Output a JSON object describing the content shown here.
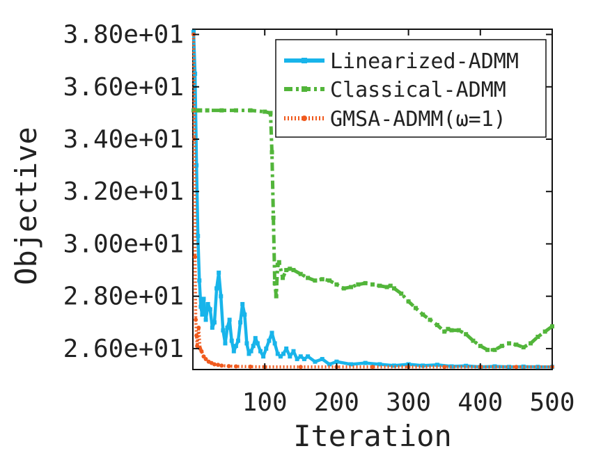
{
  "chart_data": {
    "type": "line",
    "xlabel": "Iteration",
    "ylabel": "Objective",
    "xlim": [
      0,
      500
    ],
    "ylim": [
      25.2,
      38.2
    ],
    "x_ticks": [
      100,
      200,
      300,
      400,
      500
    ],
    "x_tick_labels": [
      "100",
      "200",
      "300",
      "400",
      "500"
    ],
    "y_ticks": [
      26,
      28,
      30,
      32,
      34,
      36,
      38
    ],
    "y_tick_labels": [
      "2.60e+01",
      "2.80e+01",
      "3.00e+01",
      "3.20e+01",
      "3.40e+01",
      "3.60e+01",
      "3.80e+01"
    ],
    "legend_position": "top-right",
    "series": [
      {
        "name": "Linearized-ADMM",
        "color": "#18b4ea",
        "style": "solid",
        "x": [
          1,
          3,
          5,
          7,
          9,
          11,
          13,
          15,
          18,
          21,
          24,
          27,
          30,
          33,
          36,
          39,
          42,
          45,
          48,
          51,
          54,
          57,
          60,
          63,
          66,
          69,
          72,
          75,
          78,
          81,
          84,
          87,
          90,
          94,
          98,
          102,
          106,
          110,
          114,
          118,
          122,
          126,
          130,
          135,
          140,
          145,
          150,
          155,
          160,
          170,
          180,
          190,
          200,
          220,
          240,
          260,
          280,
          300,
          320,
          340,
          360,
          380,
          400,
          420,
          440,
          460,
          480,
          500
        ],
        "values": [
          38.1,
          36.5,
          33.0,
          30.3,
          28.6,
          27.6,
          27.3,
          27.9,
          27.1,
          27.7,
          27.5,
          26.8,
          27.0,
          28.3,
          28.9,
          28.0,
          26.7,
          26.2,
          26.8,
          27.1,
          26.3,
          25.9,
          26.1,
          26.3,
          27.0,
          27.7,
          27.3,
          26.2,
          25.8,
          25.9,
          26.1,
          26.4,
          26.2,
          25.9,
          25.7,
          26.0,
          26.3,
          26.6,
          26.2,
          25.8,
          25.7,
          25.8,
          26.0,
          25.7,
          25.9,
          25.6,
          25.7,
          25.6,
          25.7,
          25.5,
          25.6,
          25.4,
          25.5,
          25.4,
          25.45,
          25.4,
          25.35,
          25.4,
          25.35,
          25.38,
          25.32,
          25.34,
          25.3,
          25.32,
          25.3,
          25.31,
          25.3,
          25.3
        ]
      },
      {
        "name": "Classical-ADMM",
        "color": "#52b53a",
        "style": "dashdot",
        "x": [
          1,
          5,
          10,
          20,
          40,
          60,
          80,
          100,
          108,
          110,
          112,
          114,
          116,
          118,
          120,
          125,
          130,
          135,
          140,
          150,
          160,
          170,
          180,
          190,
          200,
          210,
          220,
          230,
          240,
          250,
          260,
          270,
          275,
          280,
          290,
          300,
          310,
          320,
          330,
          340,
          350,
          355,
          360,
          370,
          380,
          390,
          400,
          410,
          420,
          430,
          440,
          450,
          460,
          470,
          480,
          490,
          500
        ],
        "values": [
          35.1,
          35.1,
          35.1,
          35.1,
          35.1,
          35.1,
          35.1,
          35.05,
          35.0,
          33.5,
          31.0,
          28.5,
          28.0,
          29.2,
          29.3,
          28.7,
          29.0,
          29.05,
          29.0,
          28.85,
          28.7,
          28.6,
          28.65,
          28.6,
          28.45,
          28.3,
          28.35,
          28.45,
          28.5,
          28.45,
          28.4,
          28.35,
          28.4,
          28.3,
          28.1,
          27.8,
          27.55,
          27.3,
          27.1,
          26.9,
          26.65,
          26.75,
          26.7,
          26.7,
          26.55,
          26.3,
          26.1,
          25.95,
          25.95,
          26.1,
          26.2,
          26.15,
          26.05,
          26.2,
          26.45,
          26.65,
          26.85
        ]
      },
      {
        "name": "GMSA-ADMM(ω=1)",
        "color": "#f05a1e",
        "style": "dotted",
        "x": [
          1,
          2,
          3,
          4,
          5,
          6,
          8,
          10,
          12,
          15,
          18,
          22,
          26,
          30,
          35,
          40,
          50,
          60,
          80,
          100,
          150,
          200,
          250,
          300,
          350,
          400,
          450,
          500
        ],
        "values": [
          38.0,
          34.0,
          29.5,
          27.1,
          26.5,
          26.1,
          26.8,
          26.0,
          25.9,
          25.7,
          25.6,
          25.5,
          25.45,
          25.4,
          25.38,
          25.35,
          25.33,
          25.32,
          25.31,
          25.3,
          25.3,
          25.3,
          25.3,
          25.3,
          25.3,
          25.3,
          25.3,
          25.3
        ]
      }
    ]
  }
}
